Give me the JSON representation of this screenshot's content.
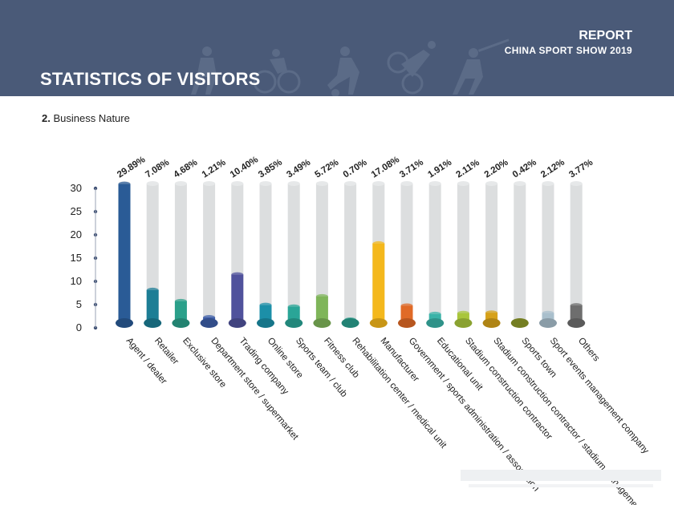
{
  "header": {
    "title": "STATISTICS OF VISITORS",
    "report": "REPORT",
    "show": "CHINA SPORT SHOW 2019"
  },
  "section": {
    "number": "2.",
    "title": "Business Nature"
  },
  "chart_data": {
    "type": "bar",
    "ylim": [
      0,
      30
    ],
    "yticks": [
      0,
      5,
      10,
      15,
      20,
      25,
      30
    ],
    "categories": [
      "Agent / dealer",
      "Retailer",
      "Exclusive store",
      "Department store / supermarket",
      "Trading company",
      "Online store",
      "Sports team / club",
      "Fitness club",
      "Rehabilitation center / medical unit",
      "Manufacturer",
      "Government / sports administration / association",
      "Educational unit",
      "Stadium construction contractor",
      "Stadium construction contractor / stadium management",
      "Sports town",
      "Sport events management company",
      "Others"
    ],
    "values": [
      29.89,
      7.08,
      4.68,
      1.21,
      10.4,
      3.85,
      3.49,
      5.72,
      0.7,
      17.08,
      3.71,
      1.91,
      2.11,
      2.2,
      0.42,
      2.12,
      3.77
    ],
    "value_labels": [
      "29.89%",
      "7.08%",
      "4.68%",
      "1.21%",
      "10.40%",
      "3.85%",
      "3.49%",
      "5.72%",
      "0.70%",
      "17.08%",
      "3.71%",
      "1.91%",
      "2.11%",
      "2.20%",
      "0.42%",
      "2.12%",
      "3.77%"
    ],
    "colors": [
      "#2a5b96",
      "#1d7e95",
      "#2ba08a",
      "#3e5ea8",
      "#50529c",
      "#1c8fa8",
      "#2aa597",
      "#7fb55a",
      "#2a9f8e",
      "#f4b81c",
      "#e06a27",
      "#3ab3a8",
      "#a9c63c",
      "#d6a11a",
      "#8e9a2a",
      "#a9bfcc",
      "#6e6e6e"
    ],
    "track_color": "#dcdedf"
  }
}
